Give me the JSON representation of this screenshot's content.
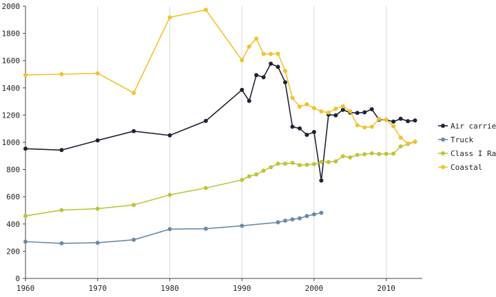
{
  "chart_data": {
    "type": "line",
    "title": "",
    "xlabel": "",
    "ylabel": "",
    "xlim": [
      1960,
      2015
    ],
    "ylim": [
      0,
      2000
    ],
    "x_ticks": [
      1960,
      1970,
      1980,
      1990,
      2000,
      2010
    ],
    "y_ticks": [
      0,
      200,
      400,
      600,
      800,
      1000,
      1200,
      1400,
      1600,
      1800,
      2000
    ],
    "grid": "vertical-major",
    "legend_position": "right",
    "series": [
      {
        "name": "Air carrier",
        "color": "#1f2233",
        "points": [
          [
            1960,
            953
          ],
          [
            1965,
            943
          ],
          [
            1970,
            1014
          ],
          [
            1975,
            1082
          ],
          [
            1980,
            1051
          ],
          [
            1985,
            1157
          ],
          [
            1990,
            1385
          ],
          [
            1991,
            1304
          ],
          [
            1992,
            1494
          ],
          [
            1993,
            1478
          ],
          [
            1994,
            1578
          ],
          [
            1995,
            1554
          ],
          [
            1996,
            1441
          ],
          [
            1997,
            1114
          ],
          [
            1998,
            1102
          ],
          [
            1999,
            1055
          ],
          [
            2000,
            1076
          ],
          [
            2001,
            719
          ],
          [
            2002,
            1203
          ],
          [
            2003,
            1198
          ],
          [
            2004,
            1239
          ],
          [
            2005,
            1218
          ],
          [
            2006,
            1216
          ],
          [
            2007,
            1220
          ],
          [
            2008,
            1243
          ],
          [
            2009,
            1166
          ],
          [
            2010,
            1165
          ],
          [
            2011,
            1152
          ],
          [
            2012,
            1173
          ],
          [
            2013,
            1155
          ],
          [
            2014,
            1160
          ]
        ]
      },
      {
        "name": "Truck",
        "color": "#6a8aa8",
        "points": [
          [
            1960,
            270
          ],
          [
            1965,
            258
          ],
          [
            1970,
            262
          ],
          [
            1975,
            284
          ],
          [
            1980,
            362
          ],
          [
            1985,
            365
          ],
          [
            1990,
            387
          ],
          [
            1995,
            412
          ],
          [
            1996,
            424
          ],
          [
            1997,
            434
          ],
          [
            1998,
            442
          ],
          [
            1999,
            458
          ],
          [
            2000,
            471
          ],
          [
            2001,
            482
          ]
        ]
      },
      {
        "name": "Class I Rail",
        "color": "#bdc43a",
        "points": [
          [
            1960,
            459
          ],
          [
            1965,
            502
          ],
          [
            1970,
            512
          ],
          [
            1975,
            540
          ],
          [
            1980,
            614
          ],
          [
            1985,
            664
          ],
          [
            1990,
            724
          ],
          [
            1991,
            750
          ],
          [
            1992,
            764
          ],
          [
            1993,
            792
          ],
          [
            1994,
            817
          ],
          [
            1995,
            843
          ],
          [
            1996,
            843
          ],
          [
            1997,
            849
          ],
          [
            1998,
            833
          ],
          [
            1999,
            835
          ],
          [
            2000,
            840
          ],
          [
            2001,
            856
          ],
          [
            2002,
            855
          ],
          [
            2003,
            860
          ],
          [
            2004,
            898
          ],
          [
            2005,
            889
          ],
          [
            2006,
            907
          ],
          [
            2007,
            912
          ],
          [
            2008,
            919
          ],
          [
            2009,
            914
          ],
          [
            2010,
            915
          ],
          [
            2011,
            917
          ],
          [
            2012,
            970
          ],
          [
            2013,
            987
          ],
          [
            2014,
            1004
          ]
        ]
      },
      {
        "name": "Coastal",
        "color": "#f2c12e",
        "points": [
          [
            1960,
            1495
          ],
          [
            1965,
            1500
          ],
          [
            1970,
            1507
          ],
          [
            1975,
            1363
          ],
          [
            1980,
            1918
          ],
          [
            1985,
            1973
          ],
          [
            1990,
            1603
          ],
          [
            1991,
            1703
          ],
          [
            1992,
            1762
          ],
          [
            1993,
            1649
          ],
          [
            1994,
            1649
          ],
          [
            1995,
            1651
          ],
          [
            1996,
            1525
          ],
          [
            1997,
            1326
          ],
          [
            1998,
            1262
          ],
          [
            1999,
            1279
          ],
          [
            2000,
            1251
          ],
          [
            2001,
            1227
          ],
          [
            2002,
            1218
          ],
          [
            2003,
            1246
          ],
          [
            2004,
            1265
          ],
          [
            2005,
            1228
          ],
          [
            2006,
            1126
          ],
          [
            2007,
            1109
          ],
          [
            2008,
            1114
          ],
          [
            2009,
            1171
          ],
          [
            2010,
            1165
          ],
          [
            2011,
            1118
          ],
          [
            2012,
            1034
          ],
          [
            2013,
            991
          ],
          [
            2014,
            1006
          ]
        ]
      }
    ]
  }
}
